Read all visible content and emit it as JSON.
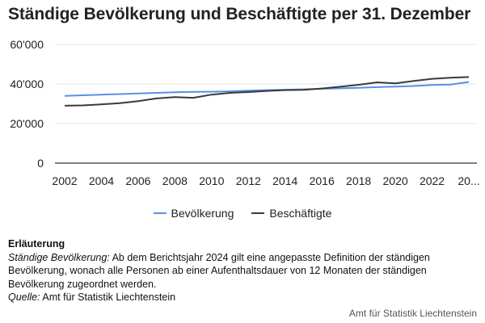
{
  "title": "Ständige Bevölkerung und Beschäftigte per 31. Dezember",
  "chart_data": {
    "type": "line",
    "title": "Ständige Bevölkerung und Beschäftigte per 31. Dezember",
    "x": [
      2002,
      2003,
      2004,
      2005,
      2006,
      2007,
      2008,
      2009,
      2010,
      2011,
      2012,
      2013,
      2014,
      2015,
      2016,
      2017,
      2018,
      2019,
      2020,
      2021,
      2022,
      2023,
      2024
    ],
    "x_ticks": [
      "2002",
      "2004",
      "2006",
      "2008",
      "2010",
      "2012",
      "2014",
      "2016",
      "2018",
      "2020",
      "2022",
      "20..."
    ],
    "y_ticks": [
      "0",
      "20'000",
      "40'000",
      "60'000"
    ],
    "ylim": [
      0,
      60000
    ],
    "grid": true,
    "legend_position": "bottom",
    "series": [
      {
        "name": "Bevölkerung",
        "color": "#5b8ee6",
        "values": [
          34000,
          34300,
          34600,
          34900,
          35200,
          35500,
          35800,
          36000,
          36100,
          36300,
          36600,
          36900,
          37100,
          37300,
          37600,
          37800,
          38100,
          38400,
          38700,
          39000,
          39500,
          39700,
          41000
        ]
      },
      {
        "name": "Beschäftigte",
        "color": "#3a3a3a",
        "values": [
          29000,
          29200,
          29700,
          30300,
          31300,
          32700,
          33400,
          33000,
          34600,
          35500,
          35900,
          36500,
          36900,
          37000,
          37700,
          38600,
          39600,
          40800,
          40300,
          41500,
          42600,
          43200,
          43500
        ]
      }
    ]
  },
  "notes": {
    "heading": "Erläuterung",
    "definition_label": "Ständige Bevölkerung:",
    "definition_text": " Ab dem Berichtsjahr 2024 gilt eine angepasste Definition der ständigen Bevölkerung, wonach alle Personen ab einer Aufenthaltsdauer von 12 Monaten der ständigen Bevölkerung zugeordnet werden.",
    "source_label": "Quelle:",
    "source_text": " Amt für Statistik Liechtenstein"
  },
  "footer": "Amt für Statistik Liechtenstein"
}
